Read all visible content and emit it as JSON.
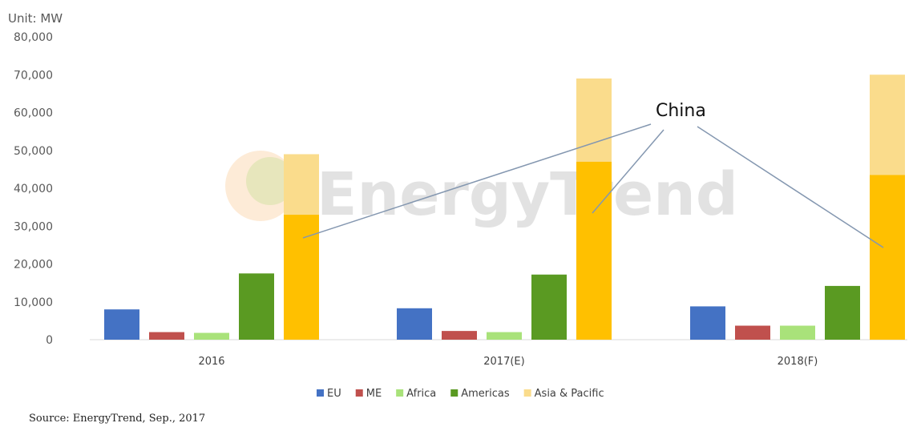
{
  "chart_data": {
    "type": "bar",
    "unit_label": "Unit: MW",
    "categories": [
      "2016",
      "2017(E)",
      "2018(F)"
    ],
    "ylim": [
      0,
      80000
    ],
    "yticks": [
      "0",
      "10,000",
      "20,000",
      "30,000",
      "40,000",
      "50,000",
      "60,000",
      "70,000",
      "80,000"
    ],
    "grid": false,
    "legend_position": "bottom",
    "series": [
      {
        "name": "EU",
        "color": "#4472C4",
        "values": [
          8000,
          8300,
          8800
        ]
      },
      {
        "name": "ME",
        "color": "#C0504D",
        "values": [
          2000,
          2300,
          3700
        ]
      },
      {
        "name": "Africa",
        "color": "#A9E27A",
        "values": [
          1800,
          2000,
          3700
        ]
      },
      {
        "name": "Americas",
        "color": "#5A9A22",
        "values": [
          17500,
          17200,
          14200
        ]
      },
      {
        "name": "Asia & Pacific",
        "color": "#FADC8C",
        "values": [
          49000,
          69000,
          70000
        ],
        "china_portion": [
          33000,
          47000,
          43500
        ],
        "china_color": "#FFC000"
      }
    ],
    "annotation": "China",
    "source": "Source: EnergyTrend, Sep., 2017",
    "watermark": "EnergyTrend"
  }
}
